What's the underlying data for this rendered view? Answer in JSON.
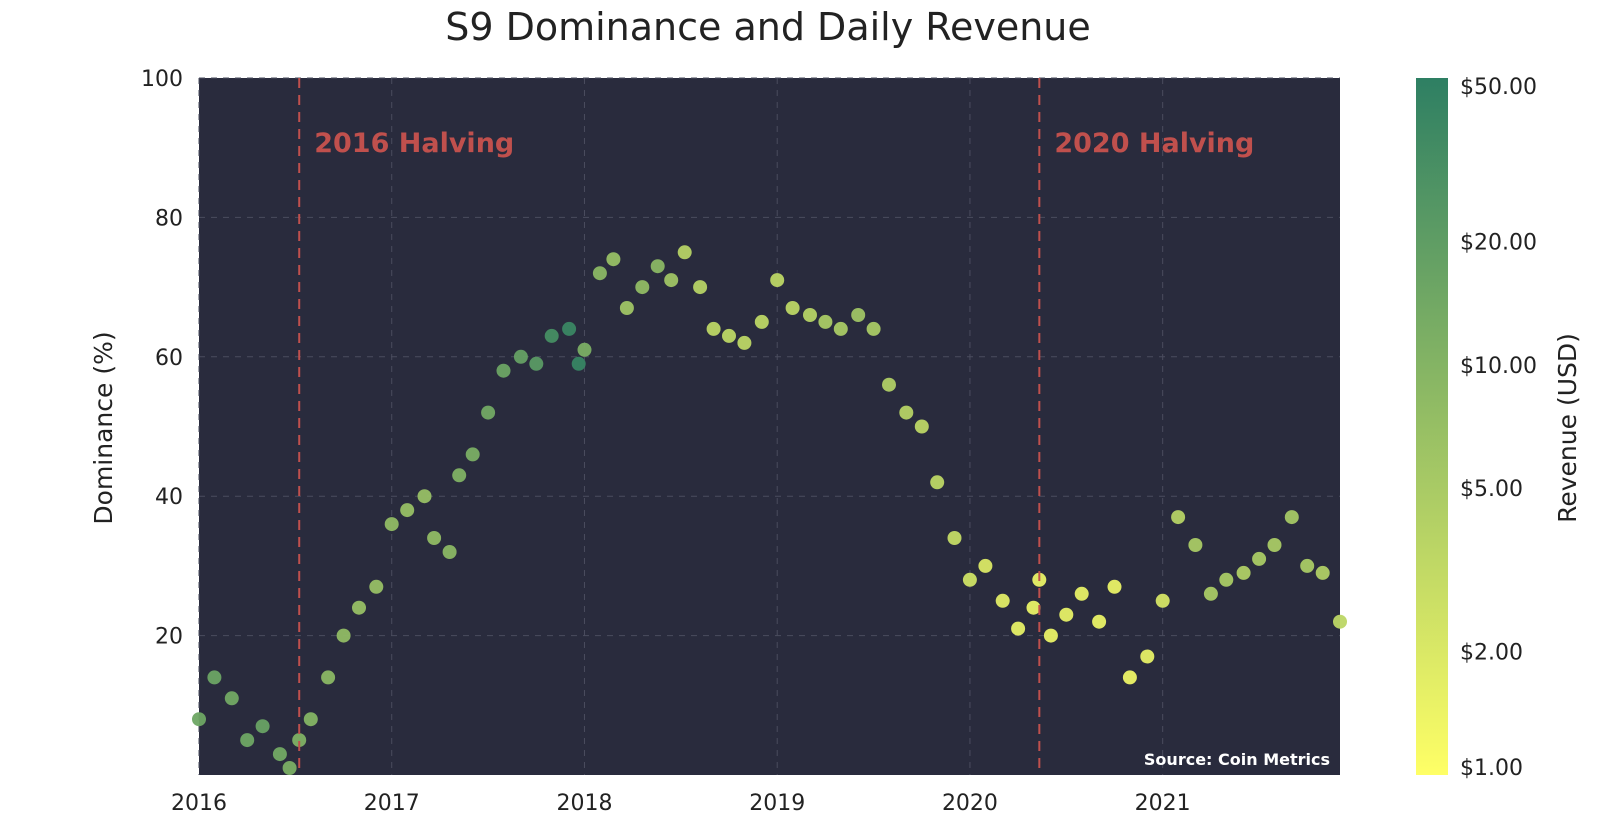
{
  "chart_data": {
    "type": "scatter",
    "title": "S9 Dominance and Daily Revenue",
    "xlabel": "",
    "ylabel": "Dominance (%)",
    "xlim": [
      2016.0,
      2021.92
    ],
    "ylim": [
      0,
      100
    ],
    "x_ticks": [
      "2016",
      "2017",
      "2018",
      "2019",
      "2020",
      "2021"
    ],
    "y_ticks": [
      "20",
      "40",
      "60",
      "80",
      "100"
    ],
    "grid": true,
    "background_color": "#292b3d",
    "annotations": [
      {
        "x": 2016.52,
        "label": "2016 Halving",
        "color": "#c0504d",
        "style": "dashed-vertical-line"
      },
      {
        "x": 2020.36,
        "label": "2020 Halving",
        "color": "#c0504d",
        "style": "dashed-vertical-line"
      }
    ],
    "source": "Source: Coin Metrics",
    "colorbar": {
      "label": "Revenue (USD)",
      "scale": "log",
      "range": [
        1,
        50
      ],
      "colormap": "summer-reversed",
      "ticks": [
        "$50.00",
        "$20.00",
        "$10.00",
        "$5.00",
        "$2.00",
        "$1.00"
      ],
      "tick_values": [
        50,
        20,
        10,
        5,
        2,
        1
      ]
    },
    "x": [
      2016.0,
      2016.08,
      2016.17,
      2016.25,
      2016.33,
      2016.42,
      2016.47,
      2016.52,
      2016.58,
      2016.67,
      2016.75,
      2016.83,
      2016.92,
      2017.0,
      2017.08,
      2017.17,
      2017.22,
      2017.3,
      2017.35,
      2017.42,
      2017.5,
      2017.58,
      2017.67,
      2017.75,
      2017.83,
      2017.92,
      2017.97,
      2018.0,
      2018.08,
      2018.15,
      2018.22,
      2018.3,
      2018.38,
      2018.45,
      2018.52,
      2018.6,
      2018.67,
      2018.75,
      2018.83,
      2018.92,
      2019.0,
      2019.08,
      2019.17,
      2019.25,
      2019.33,
      2019.42,
      2019.5,
      2019.58,
      2019.67,
      2019.75,
      2019.83,
      2019.92,
      2020.0,
      2020.08,
      2020.17,
      2020.25,
      2020.33,
      2020.36,
      2020.42,
      2020.5,
      2020.58,
      2020.67,
      2020.75,
      2020.83,
      2020.92,
      2021.0,
      2021.08,
      2021.17,
      2021.25,
      2021.33,
      2021.42,
      2021.5,
      2021.58,
      2021.67,
      2021.75,
      2021.83,
      2021.92
    ],
    "y": [
      8,
      14,
      11,
      5,
      7,
      3,
      1,
      5,
      8,
      14,
      20,
      24,
      27,
      36,
      38,
      40,
      34,
      32,
      43,
      46,
      52,
      58,
      60,
      59,
      63,
      64,
      59,
      61,
      72,
      74,
      67,
      70,
      73,
      71,
      75,
      70,
      64,
      63,
      62,
      65,
      71,
      67,
      66,
      65,
      64,
      66,
      64,
      56,
      52,
      50,
      42,
      34,
      28,
      30,
      25,
      21,
      24,
      28,
      20,
      23,
      26,
      22,
      27,
      14,
      17,
      25,
      37,
      33,
      26,
      28,
      29,
      31,
      33,
      37,
      30,
      29,
      22
    ],
    "revenue": [
      15,
      16,
      14,
      15,
      17,
      14,
      12,
      11,
      10,
      9,
      8,
      7,
      7,
      8,
      7,
      7,
      8,
      9,
      11,
      12,
      14,
      16,
      18,
      22,
      32,
      40,
      42,
      12,
      9,
      7,
      6,
      8,
      9,
      6,
      4,
      4,
      3.5,
      3.5,
      3.5,
      3.5,
      3.5,
      3.5,
      4,
      5,
      5,
      6,
      5,
      4.5,
      4,
      3.5,
      3.5,
      3,
      2.5,
      2,
      1.8,
      1.6,
      1.5,
      1.5,
      1.5,
      1.6,
      1.6,
      1.5,
      1.5,
      1.4,
      1.6,
      2.2,
      4,
      5,
      5,
      5,
      4.5,
      5,
      5,
      5.5,
      5,
      4.5,
      3.5
    ]
  }
}
